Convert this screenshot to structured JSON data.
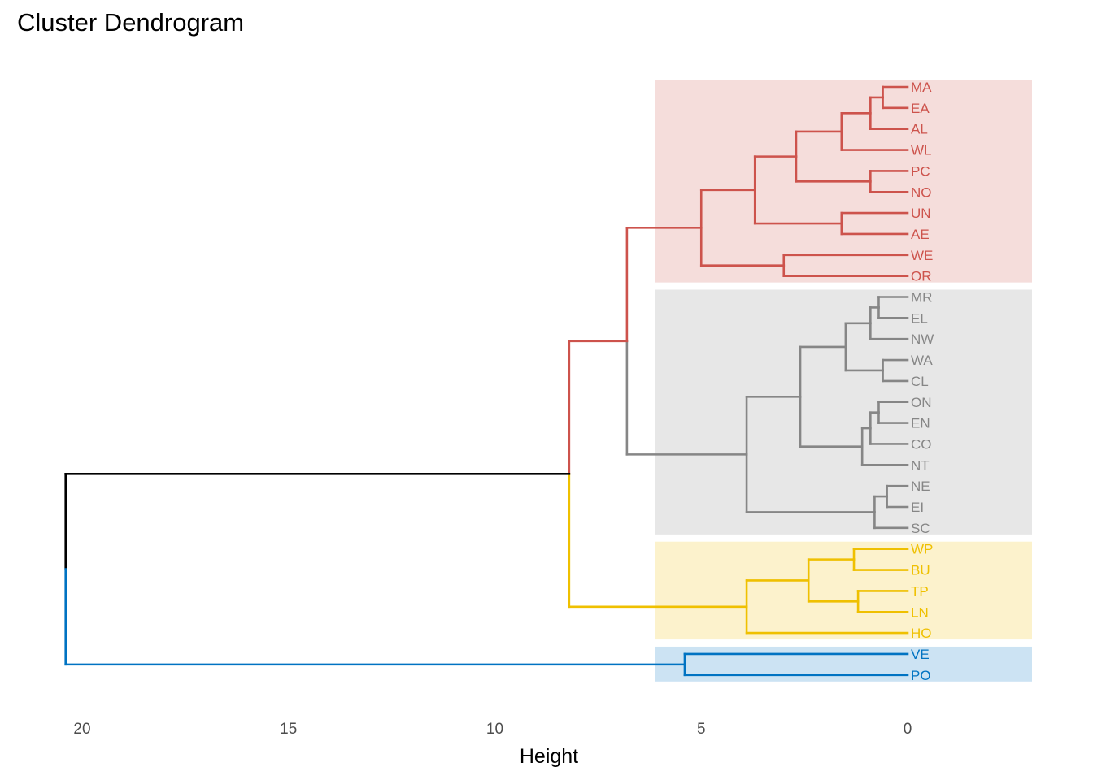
{
  "chart_data": {
    "type": "dendrogram",
    "title": "Cluster Dendrogram",
    "xlabel": "Height",
    "ylabel": "",
    "xlim": [
      20.4,
      -3.0
    ],
    "xticks": [
      20,
      15,
      10,
      5,
      0
    ],
    "grid": false,
    "colors": {
      "root": "#000000",
      "red": "#CD534C",
      "grey": "#868686",
      "yellow": "#EFC000",
      "blue": "#0073C2"
    },
    "leaves": [
      "MA",
      "EA",
      "AL",
      "WL",
      "PC",
      "NO",
      "UN",
      "AE",
      "WE",
      "OR",
      "MR",
      "EL",
      "NW",
      "WA",
      "CL",
      "ON",
      "EN",
      "CO",
      "NT",
      "NE",
      "EI",
      "SC",
      "WP",
      "BU",
      "TP",
      "LN",
      "HO",
      "VE",
      "PO"
    ],
    "clusters": [
      {
        "color": "red",
        "leaves": [
          "MA",
          "EA",
          "AL",
          "WL",
          "PC",
          "NO",
          "UN",
          "AE",
          "WE",
          "OR"
        ]
      },
      {
        "color": "grey",
        "leaves": [
          "MR",
          "EL",
          "NW",
          "WA",
          "CL",
          "ON",
          "EN",
          "CO",
          "NT",
          "NE",
          "EI",
          "SC"
        ]
      },
      {
        "color": "yellow",
        "leaves": [
          "WP",
          "BU",
          "TP",
          "LN",
          "HO"
        ]
      },
      {
        "color": "blue",
        "leaves": [
          "VE",
          "PO"
        ]
      }
    ],
    "tree": {
      "h": 20.4,
      "c": [
        {
          "h": 8.2,
          "c": [
            {
              "h": 6.8,
              "color": "red",
              "c": [
                {
                  "h": 5.0,
                  "c": [
                    {
                      "h": 3.7,
                      "c": [
                        {
                          "h": 2.7,
                          "c": [
                            {
                              "h": 1.6,
                              "c": [
                                {
                                  "h": 0.9,
                                  "c": [
                                    {
                                      "h": 0.6,
                                      "c": [
                                        "MA",
                                        "EA"
                                      ]
                                    },
                                    "AL"
                                  ]
                                },
                                "WL"
                              ]
                            },
                            {
                              "h": 0.9,
                              "c": [
                                "PC",
                                "NO"
                              ]
                            }
                          ]
                        },
                        {
                          "h": 1.6,
                          "c": [
                            "UN",
                            "AE"
                          ]
                        }
                      ]
                    },
                    {
                      "h": 3.0,
                      "c": [
                        "WE",
                        "OR"
                      ]
                    }
                  ]
                },
                {
                  "h": 3.9,
                  "color": "grey",
                  "c": [
                    {
                      "h": 2.6,
                      "c": [
                        {
                          "h": 1.5,
                          "c": [
                            {
                              "h": 0.9,
                              "c": [
                                {
                                  "h": 0.7,
                                  "c": [
                                    "MR",
                                    "EL"
                                  ]
                                },
                                "NW"
                              ]
                            },
                            {
                              "h": 0.6,
                              "c": [
                                "WA",
                                "CL"
                              ]
                            }
                          ]
                        },
                        {
                          "h": 1.1,
                          "c": [
                            {
                              "h": 0.9,
                              "c": [
                                {
                                  "h": 0.7,
                                  "c": [
                                    "ON",
                                    "EN"
                                  ]
                                },
                                "CO"
                              ]
                            },
                            "NT"
                          ]
                        }
                      ]
                    },
                    {
                      "h": 0.8,
                      "c": [
                        {
                          "h": 0.5,
                          "c": [
                            "NE",
                            "EI"
                          ]
                        },
                        "SC"
                      ]
                    }
                  ]
                }
              ]
            },
            {
              "h": 3.9,
              "color": "yellow",
              "c": [
                {
                  "h": 2.4,
                  "c": [
                    {
                      "h": 1.3,
                      "c": [
                        "WP",
                        "BU"
                      ]
                    },
                    {
                      "h": 1.2,
                      "c": [
                        "TP",
                        "LN"
                      ]
                    }
                  ]
                },
                "HO"
              ]
            }
          ]
        },
        {
          "h": 5.4,
          "color": "blue",
          "c": [
            "VE",
            "PO"
          ]
        }
      ]
    }
  }
}
